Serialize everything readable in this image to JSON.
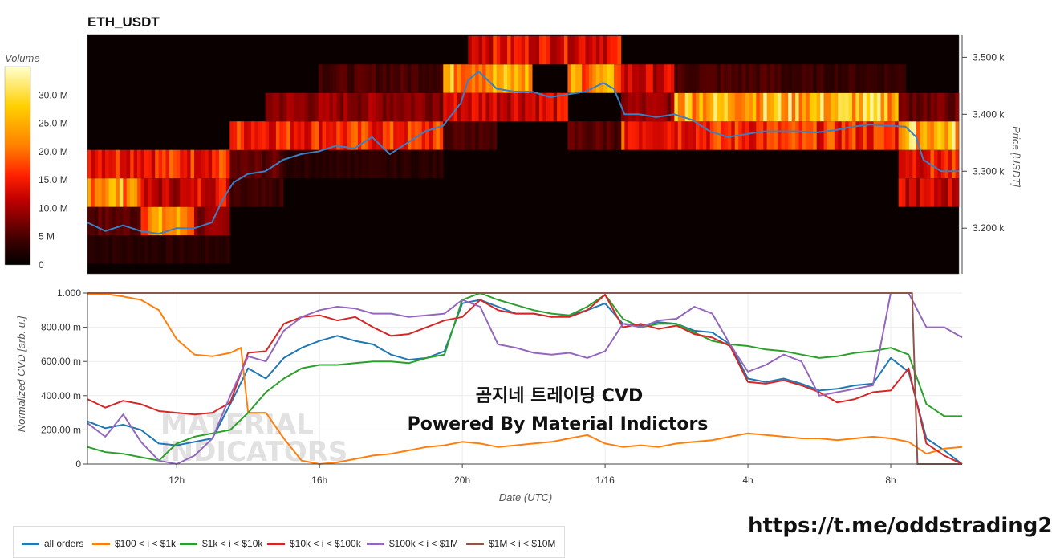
{
  "chart_data": [
    {
      "type": "heatmap",
      "title": "ETH_USDT",
      "ylabel": "Price [USDT]",
      "ylim": [
        3120,
        3540
      ],
      "yticks": [
        "3.500 k",
        "3.400 k",
        "3.300 k",
        "3.200 k"
      ],
      "ytick_values": [
        3500,
        3400,
        3300,
        3200
      ],
      "colorbar_label": "Volume",
      "colorbar_ticks": [
        "30.0 M",
        "25.0 M",
        "20.0 M",
        "15.0 M",
        "10.0 M",
        "5 M",
        "0"
      ],
      "colorbar_values": [
        30,
        25,
        20,
        15,
        10,
        5,
        0
      ],
      "colorbar_max": 35,
      "price_bins": [
        3512.5,
        3462.5,
        3412.5,
        3362.5,
        3312.5,
        3262.5,
        3212.5,
        3162.5
      ],
      "price_line": {
        "color": "#3b7fc4",
        "x_hours": [
          9.5,
          10,
          10.5,
          11,
          11.5,
          12,
          12.5,
          13,
          13.3,
          13.6,
          14,
          14.5,
          15,
          15.5,
          16,
          16.5,
          17,
          17.5,
          18,
          18.5,
          19,
          19.5,
          20,
          20.2,
          20.5,
          21,
          21.5,
          22,
          22.5,
          23,
          23.5,
          24,
          24.3,
          24.6,
          25,
          25.5,
          26,
          26.5,
          27,
          27.5,
          28,
          28.5,
          29,
          29.5,
          30,
          30.5,
          31,
          31.5,
          32,
          32.5,
          32.8,
          33,
          33.5,
          34
        ],
        "prices": [
          3210,
          3195,
          3205,
          3195,
          3190,
          3200,
          3200,
          3210,
          3250,
          3280,
          3295,
          3300,
          3320,
          3330,
          3335,
          3345,
          3340,
          3360,
          3330,
          3350,
          3370,
          3380,
          3420,
          3460,
          3475,
          3445,
          3440,
          3440,
          3430,
          3435,
          3440,
          3455,
          3445,
          3400,
          3400,
          3395,
          3400,
          3390,
          3370,
          3360,
          3365,
          3370,
          3370,
          3370,
          3368,
          3372,
          3378,
          3382,
          3380,
          3378,
          3360,
          3320,
          3300,
          3300
        ]
      }
    },
    {
      "type": "line",
      "xlabel": "Date (UTC)",
      "ylabel": "Normalized CVD [arb. u.]",
      "xlim": [
        9.5,
        34
      ],
      "ylim": [
        0,
        1000
      ],
      "yticks": [
        "1.000",
        "800.00 m",
        "600.00 m",
        "400.00 m",
        "200.00 m",
        "0"
      ],
      "ytick_values": [
        1000,
        800,
        600,
        400,
        200,
        0
      ],
      "x_ticks": [
        "12h",
        "16h",
        "20h",
        "1/16",
        "4h",
        "8h"
      ],
      "x_tick_hours": [
        12,
        16,
        20,
        24,
        28,
        32
      ],
      "series": [
        {
          "name": "all orders",
          "color": "#1f77b4",
          "x": [
            9.5,
            10,
            10.5,
            11,
            11.5,
            12,
            12.5,
            13,
            13.5,
            14,
            14.5,
            15,
            15.5,
            16,
            16.5,
            17,
            17.5,
            18,
            18.5,
            19,
            19.5,
            20,
            20.5,
            21,
            21.5,
            22,
            22.5,
            23,
            23.5,
            24,
            24.5,
            25,
            25.5,
            26,
            26.5,
            27,
            27.5,
            28,
            28.5,
            29,
            29.5,
            30,
            30.5,
            31,
            31.5,
            32,
            32.5,
            33,
            33.5,
            34
          ],
          "y": [
            250,
            210,
            230,
            200,
            120,
            110,
            130,
            150,
            350,
            560,
            500,
            620,
            680,
            720,
            750,
            720,
            700,
            640,
            610,
            620,
            660,
            940,
            960,
            920,
            880,
            880,
            860,
            870,
            900,
            940,
            820,
            810,
            830,
            820,
            780,
            770,
            700,
            500,
            480,
            500,
            470,
            430,
            440,
            460,
            470,
            620,
            540,
            150,
            80,
            0
          ]
        },
        {
          "name": "$100 < i < $1k",
          "color": "#ff7f0e",
          "x": [
            9.5,
            10,
            10.5,
            11,
            11.5,
            12,
            12.5,
            13,
            13.5,
            13.8,
            14,
            14.5,
            15,
            15.5,
            16,
            16.5,
            17,
            17.5,
            18,
            18.5,
            19,
            19.5,
            20,
            20.5,
            21,
            21.5,
            22,
            22.5,
            23,
            23.5,
            24,
            24.5,
            25,
            25.5,
            26,
            26.5,
            27,
            27.5,
            28,
            28.5,
            29,
            29.5,
            30,
            30.5,
            31,
            31.5,
            32,
            32.5,
            33,
            33.5,
            34
          ],
          "y": [
            990,
            995,
            980,
            960,
            900,
            730,
            640,
            630,
            650,
            680,
            300,
            300,
            150,
            20,
            0,
            10,
            30,
            50,
            60,
            80,
            100,
            110,
            130,
            120,
            100,
            110,
            120,
            130,
            150,
            170,
            120,
            100,
            110,
            100,
            120,
            130,
            140,
            160,
            180,
            170,
            160,
            150,
            150,
            140,
            150,
            160,
            150,
            130,
            60,
            90,
            100
          ]
        },
        {
          "name": "$1k < i < $10k",
          "color": "#2ca02c",
          "x": [
            9.5,
            10,
            10.5,
            11,
            11.5,
            12,
            12.5,
            13,
            13.5,
            14,
            14.5,
            15,
            15.5,
            16,
            16.5,
            17,
            17.5,
            18,
            18.5,
            19,
            19.5,
            20,
            20.5,
            21,
            21.5,
            22,
            22.5,
            23,
            23.5,
            24,
            24.5,
            25,
            25.5,
            26,
            26.5,
            27,
            27.5,
            28,
            28.5,
            29,
            29.5,
            30,
            30.5,
            31,
            31.5,
            32,
            32.5,
            33,
            33.5,
            34
          ],
          "y": [
            100,
            70,
            60,
            40,
            20,
            120,
            160,
            180,
            200,
            300,
            420,
            500,
            560,
            580,
            580,
            590,
            600,
            600,
            590,
            620,
            640,
            960,
            1000,
            960,
            930,
            900,
            880,
            870,
            920,
            990,
            850,
            800,
            820,
            820,
            770,
            720,
            700,
            690,
            670,
            660,
            640,
            620,
            630,
            650,
            660,
            680,
            640,
            350,
            280,
            280
          ]
        },
        {
          "name": "$10k < i < $100k",
          "color": "#d62728",
          "x": [
            9.5,
            10,
            10.5,
            11,
            11.5,
            12,
            12.5,
            13,
            13.5,
            14,
            14.5,
            15,
            15.5,
            16,
            16.5,
            17,
            17.5,
            18,
            18.5,
            19,
            19.5,
            20,
            20.5,
            21,
            21.5,
            22,
            22.5,
            23,
            23.5,
            24,
            24.5,
            25,
            25.5,
            26,
            26.5,
            27,
            27.5,
            28,
            28.5,
            29,
            29.5,
            30,
            30.5,
            31,
            31.5,
            32,
            32.5,
            33,
            33.5,
            34
          ],
          "y": [
            380,
            330,
            370,
            350,
            310,
            300,
            290,
            300,
            360,
            650,
            660,
            820,
            860,
            870,
            840,
            860,
            800,
            750,
            760,
            800,
            840,
            860,
            960,
            900,
            880,
            880,
            860,
            860,
            900,
            990,
            800,
            820,
            790,
            810,
            760,
            740,
            690,
            480,
            470,
            490,
            460,
            420,
            360,
            380,
            420,
            430,
            560,
            120,
            50,
            0
          ]
        },
        {
          "name": "$100k < i < $1M",
          "color": "#9467bd",
          "x": [
            9.5,
            10,
            10.5,
            11,
            11.5,
            12,
            12.5,
            13,
            13.5,
            14,
            14.5,
            15,
            15.5,
            16,
            16.5,
            17,
            17.5,
            18,
            18.5,
            19,
            19.5,
            20,
            20.5,
            21,
            21.5,
            22,
            22.5,
            23,
            23.5,
            24,
            24.5,
            25,
            25.5,
            26,
            26.5,
            27,
            27.5,
            28,
            28.5,
            29,
            29.5,
            30,
            30.5,
            31,
            31.5,
            32,
            32.5,
            33,
            33.5,
            34
          ],
          "y": [
            240,
            160,
            290,
            130,
            20,
            0,
            50,
            150,
            400,
            630,
            600,
            780,
            860,
            900,
            920,
            910,
            880,
            880,
            860,
            870,
            880,
            960,
            920,
            700,
            680,
            650,
            640,
            650,
            620,
            660,
            820,
            800,
            840,
            850,
            920,
            880,
            700,
            540,
            580,
            640,
            600,
            400,
            420,
            440,
            460,
            1000,
            1000,
            800,
            800,
            740
          ]
        },
        {
          "name": "$1M < i < $10M",
          "color": "#8c564b",
          "x": [
            9.5,
            32.6,
            32.75,
            34
          ],
          "y": [
            1000,
            1000,
            0,
            0
          ]
        }
      ]
    }
  ],
  "heat_blocks": [
    [
      9.5,
      13.5,
      3162.5,
      3
    ],
    [
      9.5,
      11,
      3212.5,
      6
    ],
    [
      11,
      12.5,
      3212.5,
      22
    ],
    [
      12.5,
      13.5,
      3212.5,
      8
    ],
    [
      9.5,
      11,
      3262.5,
      24
    ],
    [
      11,
      12.5,
      3262.5,
      11
    ],
    [
      12.5,
      13.5,
      3262.5,
      14
    ],
    [
      9.5,
      13.5,
      3312.5,
      16
    ],
    [
      13.2,
      14,
      3312.5,
      20
    ],
    [
      13.5,
      15,
      3262.5,
      4
    ],
    [
      13.5,
      15,
      3312.5,
      6
    ],
    [
      15,
      17,
      3312.5,
      3
    ],
    [
      13.5,
      19.5,
      3362.5,
      16
    ],
    [
      14.5,
      19.5,
      3412.5,
      9
    ],
    [
      16,
      19.5,
      3462.5,
      5
    ],
    [
      19.5,
      22,
      3462.5,
      24
    ],
    [
      19.5,
      23,
      3412.5,
      13
    ],
    [
      19.5,
      21,
      3362.5,
      5
    ],
    [
      20.2,
      24.5,
      3512.5,
      14
    ],
    [
      23,
      24.5,
      3462.5,
      22
    ],
    [
      24.5,
      26,
      3462.5,
      12
    ],
    [
      24.5,
      26,
      3412.5,
      9
    ],
    [
      24.5,
      32.3,
      3362.5,
      16
    ],
    [
      26,
      32.3,
      3412.5,
      26
    ],
    [
      26,
      29,
      3462.5,
      5
    ],
    [
      29,
      32.5,
      3462.5,
      4
    ],
    [
      32.3,
      34,
      3312.5,
      15
    ],
    [
      32.3,
      34,
      3262.5,
      12
    ],
    [
      32.3,
      34,
      3362.5,
      26
    ],
    [
      32.3,
      34,
      3412.5,
      7
    ],
    [
      23,
      24.5,
      3362.5,
      6
    ],
    [
      17,
      19.5,
      3312.5,
      3
    ]
  ],
  "overlay_text": [
    "곰지네 트레이딩 CVD",
    "Powered By Material Indictors"
  ],
  "watermark": [
    "MATERIAL",
    "INDICATORS"
  ],
  "link_text": "https://t.me/oddstrading2"
}
